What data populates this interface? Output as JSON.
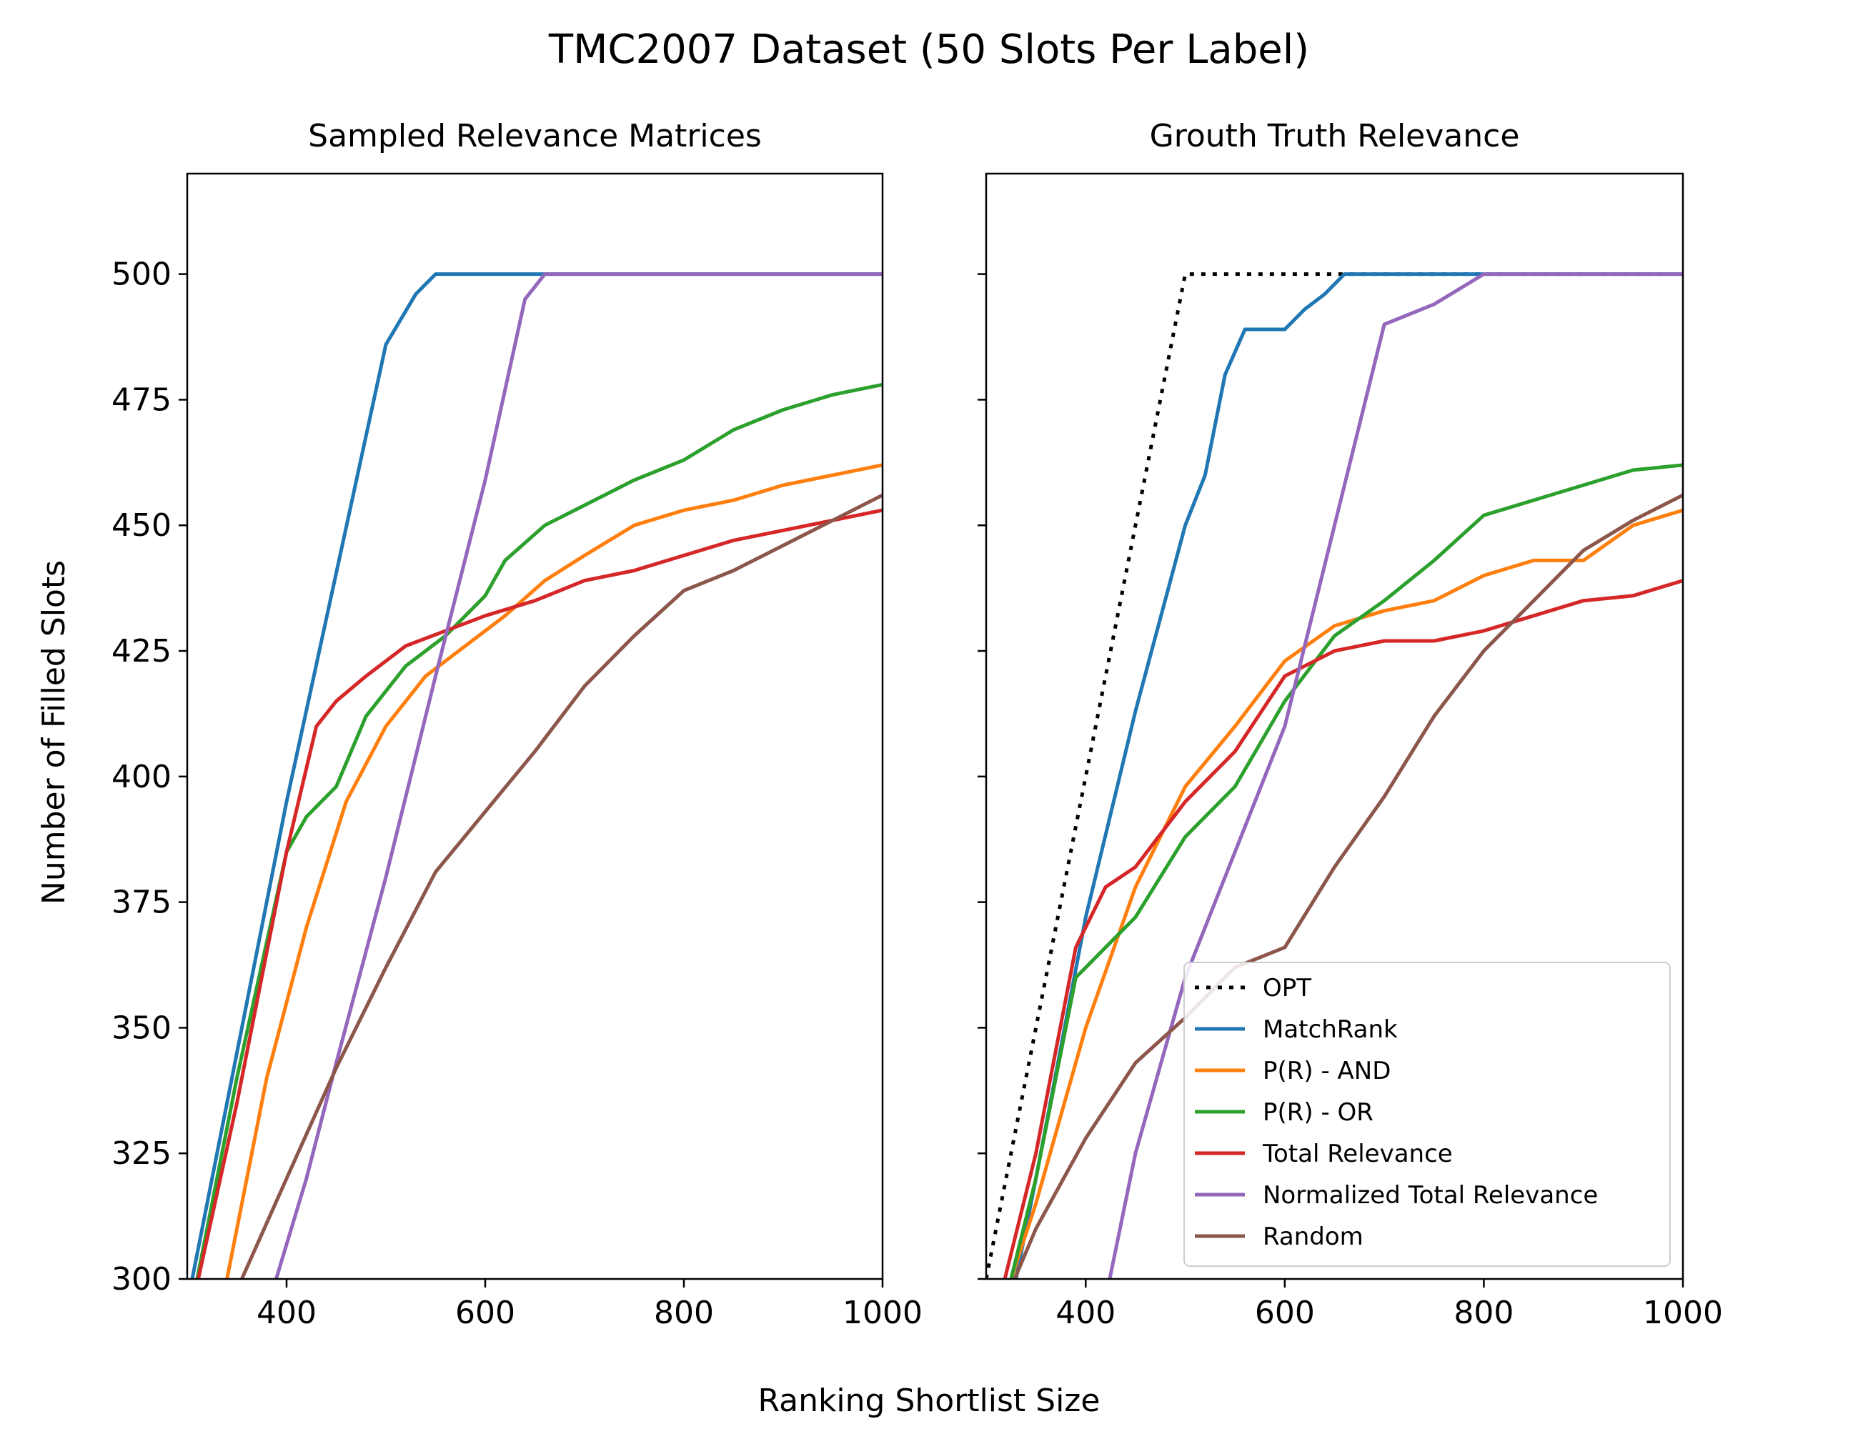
{
  "figure": {
    "title": "TMC2007 Dataset (50 Slots Per Label)",
    "xlabel": "Ranking Shortlist Size",
    "ylabel": "Number of Filled Slots"
  },
  "chart_data": [
    {
      "type": "line",
      "title": "Sampled Relevance Matrices",
      "xlabel": "Ranking Shortlist Size",
      "ylabel": "Number of Filled Slots",
      "xlim": [
        300,
        1000
      ],
      "ylim": [
        300,
        520
      ],
      "xticks": [
        400,
        600,
        800,
        1000
      ],
      "yticks": [
        300,
        325,
        350,
        375,
        400,
        425,
        450,
        475,
        500
      ],
      "grid": false,
      "legend": null,
      "series": [
        {
          "name": "MatchRank",
          "color": "#1f77b4",
          "dash": null,
          "points": [
            [
              300,
              295
            ],
            [
              400,
              395
            ],
            [
              500,
              486
            ],
            [
              530,
              496
            ],
            [
              550,
              500
            ],
            [
              600,
              500
            ],
            [
              800,
              500
            ],
            [
              1000,
              500
            ]
          ]
        },
        {
          "name": "P(R) - AND",
          "color": "#ff7f0e",
          "dash": null,
          "points": [
            [
              300,
              280
            ],
            [
              340,
              300
            ],
            [
              380,
              340
            ],
            [
              420,
              370
            ],
            [
              460,
              395
            ],
            [
              500,
              410
            ],
            [
              540,
              420
            ],
            [
              580,
              426
            ],
            [
              620,
              432
            ],
            [
              660,
              439
            ],
            [
              700,
              444
            ],
            [
              750,
              450
            ],
            [
              800,
              453
            ],
            [
              850,
              455
            ],
            [
              900,
              458
            ],
            [
              950,
              460
            ],
            [
              1000,
              462
            ]
          ]
        },
        {
          "name": "P(R) - OR",
          "color": "#2ca02c",
          "dash": null,
          "points": [
            [
              300,
              290
            ],
            [
              350,
              340
            ],
            [
              400,
              385
            ],
            [
              420,
              392
            ],
            [
              450,
              398
            ],
            [
              480,
              412
            ],
            [
              520,
              422
            ],
            [
              560,
              428
            ],
            [
              600,
              436
            ],
            [
              620,
              443
            ],
            [
              660,
              450
            ],
            [
              700,
              454
            ],
            [
              750,
              459
            ],
            [
              800,
              463
            ],
            [
              850,
              469
            ],
            [
              900,
              473
            ],
            [
              950,
              476
            ],
            [
              1000,
              478
            ]
          ]
        },
        {
          "name": "Total Relevance",
          "color": "#d62728",
          "dash": null,
          "points": [
            [
              300,
              290
            ],
            [
              350,
              335
            ],
            [
              400,
              385
            ],
            [
              430,
              410
            ],
            [
              450,
              415
            ],
            [
              480,
              420
            ],
            [
              520,
              426
            ],
            [
              560,
              429
            ],
            [
              600,
              432
            ],
            [
              650,
              435
            ],
            [
              700,
              439
            ],
            [
              750,
              441
            ],
            [
              800,
              444
            ],
            [
              850,
              447
            ],
            [
              900,
              449
            ],
            [
              950,
              451
            ],
            [
              1000,
              453
            ]
          ]
        },
        {
          "name": "Normalized Total Relevance",
          "color": "#9467bd",
          "dash": null,
          "points": [
            [
              385,
              297
            ],
            [
              420,
              320
            ],
            [
              450,
              343
            ],
            [
              500,
              380
            ],
            [
              550,
              420
            ],
            [
              600,
              459
            ],
            [
              640,
              495
            ],
            [
              660,
              500
            ],
            [
              680,
              500
            ],
            [
              800,
              500
            ],
            [
              1000,
              500
            ]
          ]
        },
        {
          "name": "Random",
          "color": "#8c564b",
          "dash": null,
          "points": [
            [
              355,
              300
            ],
            [
              400,
              320
            ],
            [
              450,
              342
            ],
            [
              500,
              362
            ],
            [
              550,
              381
            ],
            [
              600,
              393
            ],
            [
              650,
              405
            ],
            [
              700,
              418
            ],
            [
              750,
              428
            ],
            [
              800,
              437
            ],
            [
              850,
              441
            ],
            [
              900,
              446
            ],
            [
              950,
              451
            ],
            [
              1000,
              456
            ]
          ]
        }
      ]
    },
    {
      "type": "line",
      "title": "Grouth Truth Relevance",
      "xlabel": "Ranking Shortlist Size",
      "ylabel": "",
      "xlim": [
        300,
        1000
      ],
      "ylim": [
        300,
        520
      ],
      "xticks": [
        400,
        600,
        800,
        1000
      ],
      "yticks": [
        300,
        325,
        350,
        375,
        400,
        425,
        450,
        475,
        500
      ],
      "grid": false,
      "legend": "lower-right",
      "series": [
        {
          "name": "OPT",
          "color": "#000000",
          "dash": "dotted",
          "points": [
            [
              300,
              300
            ],
            [
              500,
              500
            ],
            [
              1000,
              500
            ]
          ]
        },
        {
          "name": "MatchRank",
          "color": "#1f77b4",
          "dash": null,
          "points": [
            [
              300,
              270
            ],
            [
              350,
              320
            ],
            [
              400,
              372
            ],
            [
              450,
              413
            ],
            [
              500,
              450
            ],
            [
              520,
              460
            ],
            [
              540,
              480
            ],
            [
              560,
              489
            ],
            [
              600,
              489
            ],
            [
              620,
              493
            ],
            [
              640,
              496
            ],
            [
              660,
              500
            ],
            [
              700,
              500
            ],
            [
              1000,
              500
            ]
          ]
        },
        {
          "name": "P(R) - AND",
          "color": "#ff7f0e",
          "dash": null,
          "points": [
            [
              300,
              285
            ],
            [
              350,
              315
            ],
            [
              400,
              350
            ],
            [
              450,
              378
            ],
            [
              500,
              398
            ],
            [
              550,
              410
            ],
            [
              600,
              423
            ],
            [
              650,
              430
            ],
            [
              700,
              433
            ],
            [
              750,
              435
            ],
            [
              800,
              440
            ],
            [
              850,
              443
            ],
            [
              900,
              443
            ],
            [
              950,
              450
            ],
            [
              1000,
              453
            ]
          ]
        },
        {
          "name": "P(R) - OR",
          "color": "#2ca02c",
          "dash": null,
          "points": [
            [
              300,
              280
            ],
            [
              350,
              320
            ],
            [
              390,
              360
            ],
            [
              420,
              366
            ],
            [
              450,
              372
            ],
            [
              500,
              388
            ],
            [
              550,
              398
            ],
            [
              600,
              415
            ],
            [
              650,
              428
            ],
            [
              700,
              435
            ],
            [
              750,
              443
            ],
            [
              800,
              452
            ],
            [
              850,
              455
            ],
            [
              900,
              458
            ],
            [
              950,
              461
            ],
            [
              1000,
              462
            ]
          ]
        },
        {
          "name": "Total Relevance",
          "color": "#d62728",
          "dash": null,
          "points": [
            [
              300,
              285
            ],
            [
              350,
              325
            ],
            [
              390,
              366
            ],
            [
              420,
              378
            ],
            [
              450,
              382
            ],
            [
              500,
              395
            ],
            [
              550,
              405
            ],
            [
              600,
              420
            ],
            [
              650,
              425
            ],
            [
              700,
              427
            ],
            [
              750,
              427
            ],
            [
              800,
              429
            ],
            [
              850,
              432
            ],
            [
              900,
              435
            ],
            [
              950,
              436
            ],
            [
              1000,
              439
            ]
          ]
        },
        {
          "name": "Normalized Total Relevance",
          "color": "#9467bd",
          "dash": null,
          "points": [
            [
              420,
              296
            ],
            [
              450,
              325
            ],
            [
              500,
              360
            ],
            [
              550,
              385
            ],
            [
              600,
              410
            ],
            [
              650,
              450
            ],
            [
              700,
              490
            ],
            [
              750,
              494
            ],
            [
              800,
              500
            ],
            [
              1000,
              500
            ]
          ]
        },
        {
          "name": "Random",
          "color": "#8c564b",
          "dash": null,
          "points": [
            [
              320,
              296
            ],
            [
              350,
              310
            ],
            [
              400,
              328
            ],
            [
              450,
              343
            ],
            [
              500,
              352
            ],
            [
              550,
              362
            ],
            [
              600,
              366
            ],
            [
              650,
              382
            ],
            [
              700,
              396
            ],
            [
              750,
              412
            ],
            [
              800,
              425
            ],
            [
              850,
              435
            ],
            [
              900,
              445
            ],
            [
              950,
              451
            ],
            [
              1000,
              456
            ]
          ]
        }
      ]
    }
  ]
}
